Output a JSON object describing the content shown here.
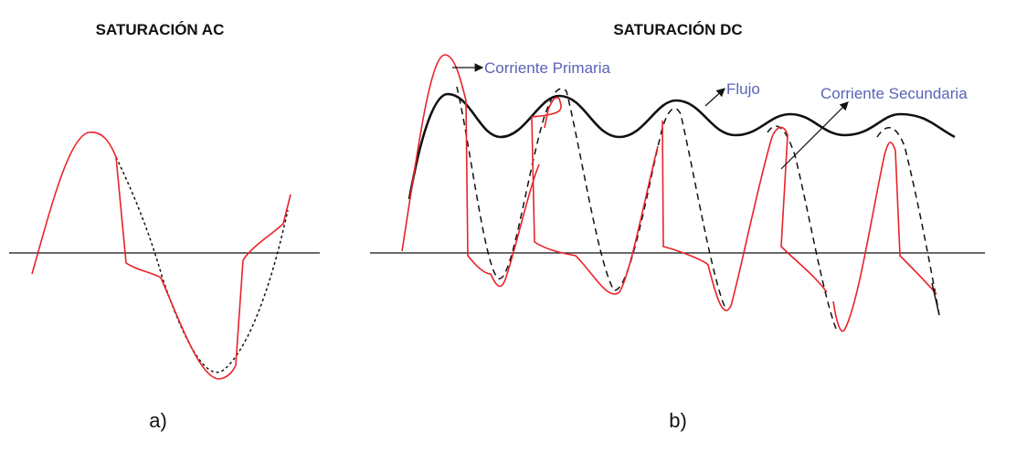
{
  "panels": [
    {
      "title": "SATURACIÓN AC",
      "caption": "a)"
    },
    {
      "title": "SATURACIÓN DC",
      "caption": "b)",
      "labels": [
        "Corriente Primaria",
        "Flujo",
        "Corriente Secundaria"
      ]
    }
  ]
}
